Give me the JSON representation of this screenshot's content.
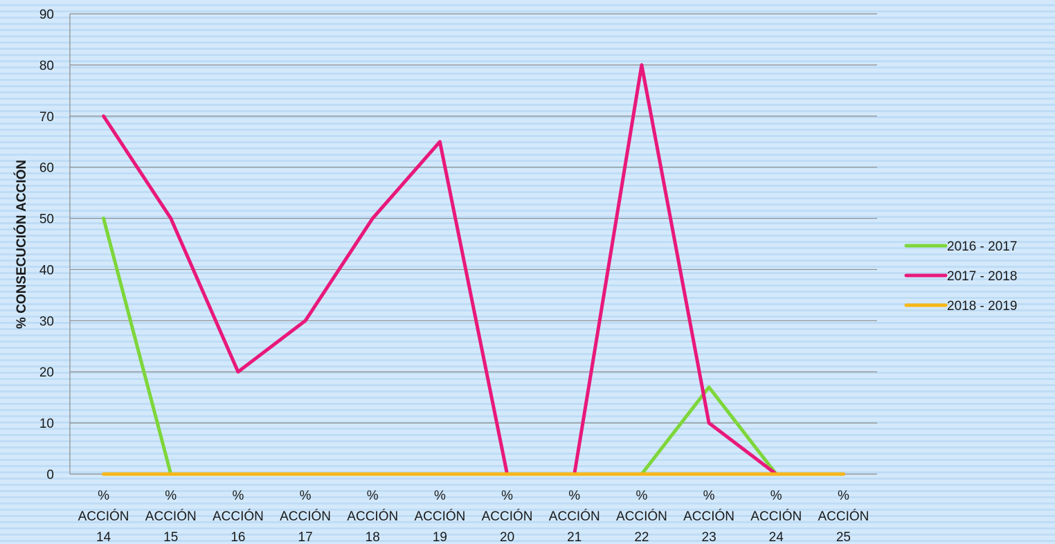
{
  "chart_data": {
    "type": "line",
    "categories": [
      [
        "%",
        "ACCIÓN",
        "14"
      ],
      [
        "%",
        "ACCIÓN",
        "15"
      ],
      [
        "%",
        "ACCIÓN",
        "16"
      ],
      [
        "%",
        "ACCIÓN",
        "17"
      ],
      [
        "%",
        "ACCIÓN",
        "18"
      ],
      [
        "%",
        "ACCIÓN",
        "19"
      ],
      [
        "%",
        "ACCIÓN",
        "20"
      ],
      [
        "%",
        "ACCIÓN",
        "21"
      ],
      [
        "%",
        "ACCIÓN",
        "22"
      ],
      [
        "%",
        "ACCIÓN",
        "23"
      ],
      [
        "%",
        "ACCIÓN",
        "24"
      ],
      [
        "%",
        "ACCIÓN",
        "25"
      ]
    ],
    "series": [
      {
        "name": "2016 - 2017",
        "color": "#7ed63b",
        "values": [
          50,
          0,
          0,
          0,
          0,
          0,
          0,
          0,
          0,
          17,
          0,
          0
        ]
      },
      {
        "name": "2017 - 2018",
        "color": "#e8197a",
        "values": [
          70,
          50,
          20,
          30,
          50,
          65,
          0,
          0,
          80,
          10,
          0,
          0
        ]
      },
      {
        "name": "2018 - 2019",
        "color": "#f7b718",
        "values": [
          0,
          0,
          0,
          0,
          0,
          0,
          0,
          0,
          0,
          0,
          0,
          0
        ]
      }
    ],
    "ylabel": "% CONSECUCIÓN ACCIÓN",
    "ylim": [
      0,
      90
    ],
    "yticks": [
      0,
      10,
      20,
      30,
      40,
      50,
      60,
      70,
      80,
      90
    ],
    "grid": true,
    "legend_position": "right"
  }
}
